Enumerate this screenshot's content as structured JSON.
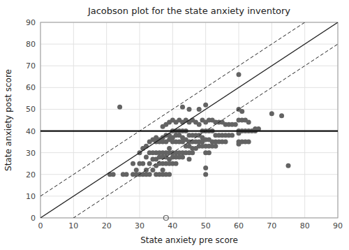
{
  "chart_data": {
    "type": "scatter",
    "title": "Jacobson plot for the state anxiety inventory",
    "x_label": "State anxiety pre score",
    "y_label": "State anxiety post score",
    "xlim": [
      0,
      90
    ],
    "ylim": [
      0,
      90
    ],
    "xticks": [
      0,
      10,
      20,
      30,
      40,
      50,
      60,
      70,
      80,
      90
    ],
    "yticks": [
      0,
      10,
      20,
      30,
      40,
      50,
      60,
      70,
      80,
      90
    ],
    "grid": true,
    "horizontal_line": {
      "y": 40
    },
    "diagonal_offset": 10,
    "series": [
      {
        "color": "#636363",
        "marker": "circle",
        "x": [
          21,
          22,
          24,
          25,
          26,
          28,
          28,
          29,
          29,
          30,
          30,
          30,
          31,
          31,
          31,
          32,
          32,
          32,
          32,
          33,
          33,
          33,
          33,
          34,
          34,
          34,
          34,
          35,
          35,
          35,
          35,
          35,
          35,
          36,
          36,
          36,
          36,
          36,
          36,
          37,
          37,
          37,
          37,
          37,
          37,
          37,
          37,
          38,
          38,
          38,
          38,
          38,
          38,
          38,
          39,
          39,
          39,
          39,
          39,
          39,
          39,
          39,
          40,
          40,
          40,
          40,
          40,
          40,
          40,
          41,
          41,
          41,
          41,
          41,
          41,
          41,
          42,
          42,
          42,
          42,
          42,
          42,
          43,
          43,
          43,
          43,
          43,
          43,
          43,
          44,
          44,
          44,
          44,
          44,
          45,
          45,
          45,
          45,
          45,
          45,
          45,
          46,
          46,
          46,
          46,
          46,
          47,
          47,
          47,
          47,
          48,
          48,
          48,
          48,
          48,
          49,
          49,
          49,
          49,
          49,
          50,
          50,
          50,
          50,
          50,
          50,
          50,
          50,
          51,
          51,
          51,
          51,
          51,
          52,
          52,
          52,
          52,
          53,
          53,
          53,
          53,
          54,
          54,
          54,
          55,
          55,
          55,
          56,
          56,
          56,
          57,
          57,
          58,
          58,
          59,
          60,
          60,
          60,
          60,
          60,
          60,
          60,
          61,
          61,
          61,
          61,
          62,
          62,
          62,
          63,
          63,
          63,
          64,
          65,
          65,
          66,
          70,
          73,
          75
        ],
        "values": [
          20,
          20,
          51,
          20,
          20,
          25,
          20,
          22,
          20,
          30,
          25,
          20,
          32,
          25,
          20,
          33,
          28,
          22,
          20,
          35,
          30,
          25,
          20,
          36,
          30,
          27,
          22,
          37,
          35,
          30,
          27,
          24,
          20,
          36,
          35,
          30,
          28,
          25,
          20,
          42,
          37,
          35,
          30,
          28,
          25,
          22,
          20,
          43,
          38,
          35,
          30,
          28,
          25,
          20,
          44,
          38,
          36,
          32,
          30,
          27,
          25,
          20,
          45,
          40,
          37,
          35,
          30,
          28,
          25,
          44,
          40,
          38,
          35,
          30,
          28,
          25,
          45,
          40,
          38,
          35,
          30,
          28,
          51,
          44,
          40,
          37,
          35,
          30,
          28,
          45,
          40,
          36,
          33,
          30,
          50,
          44,
          38,
          35,
          33,
          30,
          27,
          45,
          38,
          35,
          32,
          30,
          44,
          38,
          35,
          32,
          50,
          43,
          38,
          35,
          33,
          45,
          40,
          37,
          35,
          33,
          52,
          44,
          40,
          36,
          33,
          30,
          23,
          20,
          45,
          40,
          36,
          33,
          30,
          45,
          40,
          35,
          33,
          44,
          38,
          35,
          33,
          44,
          38,
          35,
          44,
          38,
          35,
          43,
          38,
          35,
          43,
          38,
          43,
          38,
          43,
          66,
          50,
          45,
          40,
          39,
          35,
          34,
          49,
          45,
          40,
          35,
          45,
          40,
          35,
          44,
          40,
          35,
          40,
          41,
          40,
          41,
          48,
          47,
          24
        ]
      },
      {
        "color": "#636363",
        "marker": "open-circle",
        "x": [
          38
        ],
        "values": [
          0
        ]
      }
    ]
  }
}
